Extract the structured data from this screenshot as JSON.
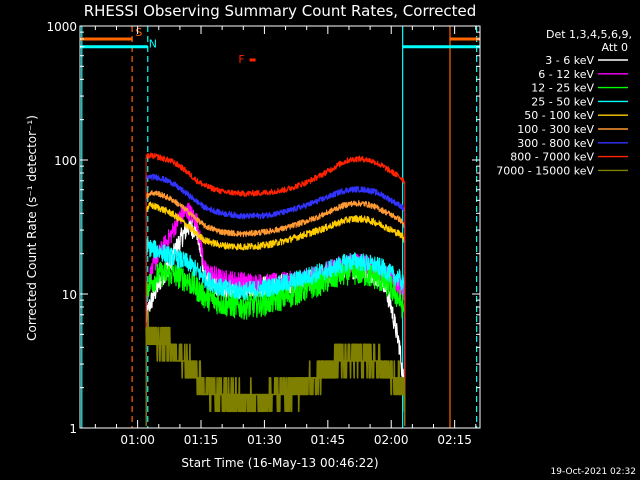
{
  "chart_data": {
    "type": "line",
    "title": "RHESSI Observing Summary Count Rates, Corrected",
    "xlabel": "Start Time (16-May-13 00:46:22)",
    "ylabel": "Corrected Count Rate (s⁻¹ detector⁻¹)",
    "yscale": "log",
    "ylim": [
      1,
      1000
    ],
    "xlim_minutes": [
      46.37,
      141.0
    ],
    "x_ticks": [
      {
        "label": "01:00",
        "minutes": 60
      },
      {
        "label": "01:15",
        "minutes": 75
      },
      {
        "label": "01:30",
        "minutes": 90
      },
      {
        "label": "01:45",
        "minutes": 105
      },
      {
        "label": "02:00",
        "minutes": 120
      },
      {
        "label": "02:15",
        "minutes": 135
      }
    ],
    "y_ticks": [
      {
        "label": "1000",
        "value": 1000
      },
      {
        "label": "100",
        "value": 100
      },
      {
        "label": "10",
        "value": 10
      },
      {
        "label": "1",
        "value": 1
      }
    ],
    "legend": {
      "header": [
        "Det 1,3,4,5,6,9,",
        "Att 0"
      ],
      "placement": "right"
    },
    "series": [
      {
        "name": "3 - 6 keV",
        "color": "#ffffff",
        "x": [
          62,
          63,
          65,
          68,
          70,
          72,
          74,
          76,
          80,
          85,
          90,
          95,
          100,
          103,
          106,
          108,
          110,
          112,
          114,
          116,
          118,
          120,
          122,
          122.7,
          123.2
        ],
        "y": [
          6.5,
          8.5,
          12,
          18,
          25,
          32,
          30,
          13,
          11,
          11,
          11.5,
          12,
          12.5,
          13,
          14,
          15,
          16,
          15,
          15,
          14,
          13,
          8,
          4,
          2.5,
          2
        ]
      },
      {
        "name": "6 - 12 keV",
        "color": "#ff00ff",
        "x": [
          62,
          63,
          65,
          68,
          70,
          72,
          74,
          76,
          80,
          85,
          90,
          95,
          100,
          103,
          106,
          108,
          110,
          112,
          114,
          116,
          118,
          120,
          122,
          122.7,
          123.2
        ],
        "y": [
          9,
          14,
          20,
          28,
          38,
          42,
          35,
          15,
          13,
          12.5,
          12,
          12.5,
          13,
          14,
          15.5,
          16.5,
          17,
          17,
          16.5,
          15.5,
          14.5,
          13,
          11.5,
          11,
          10
        ]
      },
      {
        "name": "12 - 25 keV",
        "color": "#00ff00",
        "x": [
          62,
          63,
          65,
          68,
          70,
          72,
          74,
          76,
          80,
          85,
          90,
          95,
          100,
          103,
          106,
          108,
          110,
          112,
          114,
          116,
          118,
          120,
          122,
          122.7,
          123.2
        ],
        "y": [
          11,
          12,
          14,
          14,
          13.5,
          12.5,
          11,
          9.5,
          8.5,
          8,
          8.5,
          9.5,
          11,
          12,
          13,
          14,
          14.5,
          14.5,
          14,
          13.5,
          12.5,
          11,
          9,
          8,
          7.5
        ]
      },
      {
        "name": "25 - 50 keV",
        "color": "#00ffff",
        "x": [
          62,
          63,
          65,
          68,
          70,
          72,
          74,
          76,
          80,
          85,
          90,
          95,
          100,
          103,
          106,
          108,
          110,
          112,
          114,
          116,
          118,
          120,
          122,
          122.7,
          123.2
        ],
        "y": [
          23,
          22,
          21,
          19,
          18,
          17,
          15,
          13,
          11,
          10.5,
          11,
          12,
          13.5,
          14.5,
          15.5,
          16.5,
          17.5,
          17.5,
          17,
          16.5,
          15.5,
          14,
          13,
          12,
          11
        ]
      },
      {
        "name": "50 - 100 keV",
        "color": "#ffcc00",
        "x": [
          62,
          63,
          65,
          68,
          70,
          72,
          74,
          76,
          80,
          85,
          90,
          95,
          100,
          103,
          106,
          108,
          110,
          112,
          114,
          116,
          118,
          120,
          122,
          122.7,
          123.2
        ],
        "y": [
          43,
          46,
          44,
          40,
          36,
          32,
          28,
          25,
          23,
          22.5,
          23,
          25,
          28,
          30,
          32.5,
          34.5,
          36,
          36.5,
          36,
          34.5,
          32.5,
          30,
          28,
          27,
          25
        ]
      },
      {
        "name": "100 - 300 keV",
        "color": "#ff9933",
        "x": [
          62,
          63,
          65,
          68,
          70,
          72,
          74,
          76,
          80,
          85,
          90,
          95,
          100,
          103,
          106,
          108,
          110,
          112,
          114,
          116,
          118,
          120,
          122,
          122.7,
          123.2
        ],
        "y": [
          53,
          57,
          56,
          51,
          46,
          41,
          36,
          32,
          29,
          28,
          29,
          31,
          35,
          38,
          42,
          45,
          47,
          47.5,
          47,
          45,
          42,
          39,
          36,
          34,
          32
        ]
      },
      {
        "name": "300 - 800 keV",
        "color": "#3333ff",
        "x": [
          62,
          63,
          65,
          68,
          70,
          72,
          74,
          76,
          80,
          85,
          90,
          95,
          100,
          103,
          106,
          108,
          110,
          112,
          114,
          116,
          118,
          120,
          122,
          122.7,
          123.2
        ],
        "y": [
          73,
          75,
          74,
          68,
          61,
          55,
          49,
          44,
          40,
          38,
          38.5,
          41,
          46,
          50,
          54.5,
          58,
          60,
          60.5,
          60,
          58,
          54.5,
          50,
          46,
          44,
          42
        ]
      },
      {
        "name": "800 - 7000 keV",
        "color": "#ff2200",
        "x": [
          62,
          63,
          65,
          68,
          70,
          72,
          74,
          76,
          80,
          85,
          90,
          95,
          100,
          103,
          106,
          108,
          110,
          112,
          114,
          116,
          118,
          120,
          122,
          122.7,
          123.2
        ],
        "y": [
          105,
          108,
          105,
          98,
          90,
          80,
          70,
          64,
          58,
          56,
          57,
          60,
          68,
          76,
          86,
          94,
          100,
          102,
          101,
          97,
          90,
          82,
          75,
          72,
          68
        ]
      },
      {
        "name": "7000 - 15000 keV",
        "color": "#808000",
        "x": [
          62,
          63,
          65,
          68,
          70,
          72,
          74,
          76,
          80,
          85,
          90,
          95,
          100,
          103,
          106,
          108,
          110,
          112,
          114,
          116,
          118,
          120,
          122,
          122.7,
          123.2
        ],
        "y": [
          5,
          5,
          4.5,
          4,
          3.5,
          3,
          2.5,
          2,
          1.7,
          1.6,
          1.6,
          1.8,
          2.1,
          2.4,
          2.8,
          3.1,
          3.3,
          3.4,
          3.3,
          3.1,
          2.8,
          2.5,
          2.2,
          2,
          1.8
        ]
      }
    ],
    "vertical_markers": [
      {
        "minutes": 46.8,
        "color": "#00ffff",
        "style": "solid"
      },
      {
        "minutes": 58.7,
        "color": "#ff6600",
        "style": "dashed"
      },
      {
        "minutes": 62.4,
        "color": "#00ffff",
        "style": "dashed"
      },
      {
        "minutes": 122.7,
        "color": "#00ffff",
        "style": "solid"
      },
      {
        "minutes": 133.9,
        "color": "#ff6600",
        "style": "solid"
      },
      {
        "minutes": 140.2,
        "color": "#00ffff",
        "style": "dashed"
      }
    ],
    "flag_bars": [
      {
        "label": "S",
        "color": "#ff6600",
        "segments": [
          [
            46.5,
            58.7
          ],
          [
            133.9,
            140.9
          ]
        ],
        "value": 800
      },
      {
        "label": "N",
        "color": "#00ffff",
        "segments": [
          [
            46.5,
            62.4
          ],
          [
            122.7,
            140.9
          ]
        ],
        "value": 700
      }
    ],
    "flag_labels": [
      {
        "label": "S",
        "color": "#ff6600",
        "minutes": 60.3,
        "value": 840
      },
      {
        "label": "N",
        "color": "#00ffff",
        "minutes": 63.6,
        "value": 690
      },
      {
        "label": "F",
        "color": "#ff2200",
        "minutes": 84.6,
        "value": 530
      }
    ],
    "timestamp": "19-Oct-2021 02:32"
  }
}
